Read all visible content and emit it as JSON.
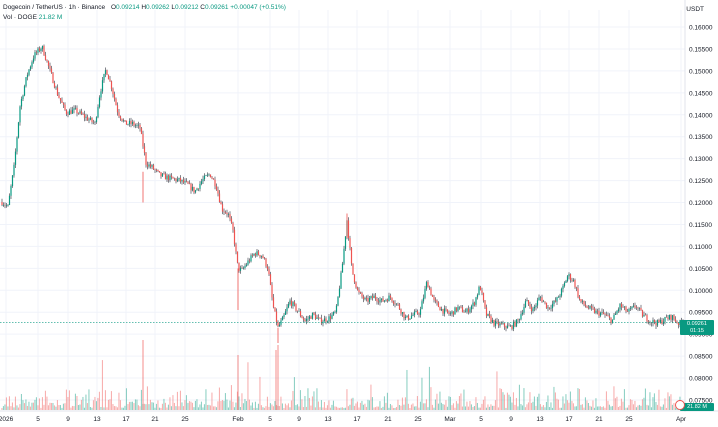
{
  "header": {
    "symbol": "Dogecoin / TetherUS · 1h · Binance",
    "o_label": "O",
    "o_value": "0.09214",
    "h_label": "H",
    "h_value": "0.09262",
    "l_label": "L",
    "l_value": "0.09212",
    "c_label": "C",
    "c_value": "0.09261",
    "change": "+0.00047 (+0.51%)",
    "vol_label": "Vol · DOGE",
    "vol_value": "21.82 M"
  },
  "price_axis": {
    "unit": "USDT",
    "labels": [
      "0.16000",
      "0.15500",
      "0.15000",
      "0.14500",
      "0.14000",
      "0.13500",
      "0.13000",
      "0.12500",
      "0.12000",
      "0.11500",
      "0.11000",
      "0.10500",
      "0.10000",
      "0.09500",
      "0.09000",
      "0.08500",
      "0.08000",
      "0.07500"
    ],
    "current_price": "0.09261",
    "countdown": "01:15",
    "current_volume": "21.82 M"
  },
  "time_axis": {
    "labels": [
      "2026",
      "5",
      "9",
      "13",
      "17",
      "21",
      "25",
      "Feb",
      "5",
      "9",
      "13",
      "17",
      "21",
      "25",
      "Mar",
      "5",
      "9",
      "13",
      "17",
      "21",
      "25",
      "Apr"
    ]
  },
  "colors": {
    "up": "#089981",
    "down": "#ef5350",
    "grid": "#f0f3fa",
    "axis_text": "#131722",
    "background": "#ffffff"
  },
  "icons": {
    "settings": "gear-icon"
  }
}
